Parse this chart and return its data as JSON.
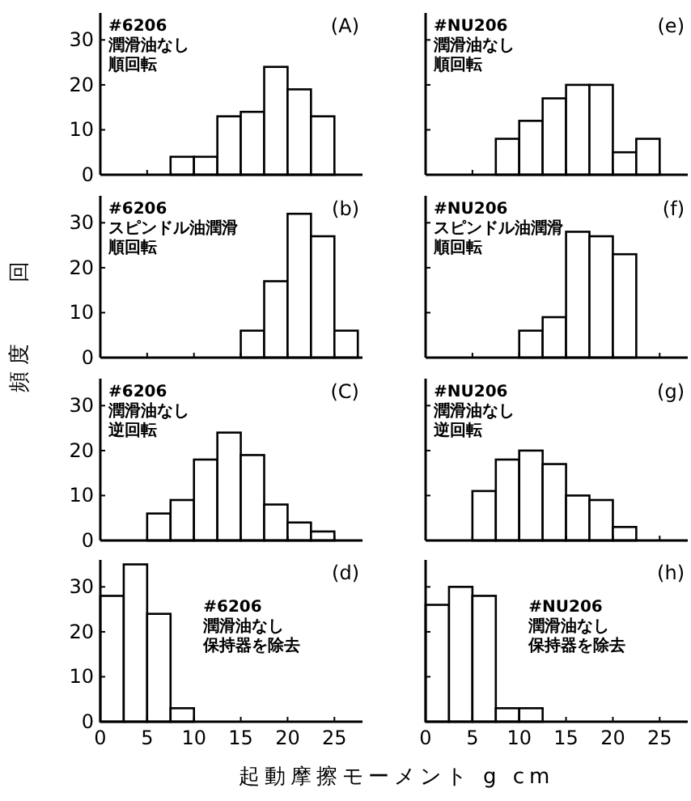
{
  "chart_data": [
    {
      "type": "histogram",
      "title": "(A)",
      "annotations": [
        "#6206",
        "潤滑油なし",
        "順回転"
      ],
      "ylabel": "頻度　　回",
      "bins": [
        7.5,
        10,
        12.5,
        15,
        17.5,
        20,
        22.5,
        25
      ],
      "values": [
        4,
        4,
        13,
        14,
        24,
        19,
        13
      ],
      "color": "#ffffff",
      "xlim": [
        0,
        28
      ],
      "ylim": [
        0,
        36
      ],
      "xticks": [
        0,
        5,
        10,
        15,
        20,
        25
      ],
      "yticks": [
        0,
        10,
        20,
        30
      ],
      "tick_labels": "y"
    },
    {
      "type": "histogram",
      "title": "(e)",
      "annotations": [
        "#NU206",
        "潤滑油なし",
        "順回転"
      ],
      "bins": [
        7.5,
        10,
        12.5,
        15,
        17.5,
        20,
        22.5,
        25
      ],
      "values": [
        8,
        12,
        17,
        20,
        20,
        5,
        8
      ],
      "color": "#ffffff",
      "xlim": [
        0,
        28
      ],
      "ylim": [
        0,
        36
      ],
      "xticks": [
        0,
        5,
        10,
        15,
        20,
        25
      ],
      "yticks": [
        0,
        10,
        20,
        30
      ],
      "tick_labels": false
    },
    {
      "type": "histogram",
      "title": "(b)",
      "annotations": [
        "#6206",
        "スピンドル油潤滑",
        "順回転"
      ],
      "bins": [
        15,
        17.5,
        20,
        22.5,
        25,
        27.5
      ],
      "values": [
        6,
        17,
        32,
        27,
        6
      ],
      "color": "#ffffff",
      "xlim": [
        0,
        28
      ],
      "ylim": [
        0,
        36
      ],
      "xticks": [
        0,
        5,
        10,
        15,
        20,
        25
      ],
      "yticks": [
        0,
        10,
        20,
        30
      ],
      "tick_labels": "y"
    },
    {
      "type": "histogram",
      "title": "(f)",
      "annotations": [
        "#NU206",
        "スピンドル油潤滑",
        "順回転"
      ],
      "bins": [
        10,
        12.5,
        15,
        17.5,
        20,
        22.5
      ],
      "values": [
        6,
        9,
        28,
        27,
        23
      ],
      "color": "#ffffff",
      "xlim": [
        0,
        28
      ],
      "ylim": [
        0,
        36
      ],
      "xticks": [
        0,
        5,
        10,
        15,
        20,
        25
      ],
      "yticks": [
        0,
        10,
        20,
        30
      ],
      "tick_labels": false
    },
    {
      "type": "histogram",
      "title": "(C)",
      "annotations": [
        "#6206",
        "潤滑油なし",
        "逆回転"
      ],
      "bins": [
        5,
        7.5,
        10,
        12.5,
        15,
        17.5,
        20,
        22.5,
        25
      ],
      "values": [
        6,
        9,
        18,
        24,
        19,
        8,
        4,
        2
      ],
      "color": "#ffffff",
      "xlim": [
        0,
        28
      ],
      "ylim": [
        0,
        36
      ],
      "xticks": [
        0,
        5,
        10,
        15,
        20,
        25
      ],
      "yticks": [
        0,
        10,
        20,
        30
      ],
      "tick_labels": "y"
    },
    {
      "type": "histogram",
      "title": "(g)",
      "annotations": [
        "#NU206",
        "潤滑油なし",
        "逆回転"
      ],
      "bins": [
        5,
        7.5,
        10,
        12.5,
        15,
        17.5,
        20,
        22.5
      ],
      "values": [
        11,
        18,
        20,
        17,
        10,
        9,
        3
      ],
      "color": "#ffffff",
      "xlim": [
        0,
        28
      ],
      "ylim": [
        0,
        36
      ],
      "xticks": [
        0,
        5,
        10,
        15,
        20,
        25
      ],
      "yticks": [
        0,
        10,
        20,
        30
      ],
      "tick_labels": false
    },
    {
      "type": "histogram",
      "title": "(d)",
      "annotations": [
        "#6206",
        "潤滑油なし",
        "保持器を除去"
      ],
      "xlabel": "起動摩擦モーメント g cm",
      "bins": [
        0,
        2.5,
        5,
        7.5,
        10
      ],
      "values": [
        28,
        35,
        24,
        3
      ],
      "color": "#ffffff",
      "xlim": [
        0,
        28
      ],
      "ylim": [
        0,
        36
      ],
      "xticks": [
        0,
        5,
        10,
        15,
        20,
        25
      ],
      "yticks": [
        0,
        10,
        20,
        30
      ]
    },
    {
      "type": "histogram",
      "title": "(h)",
      "annotations": [
        "#NU206",
        "潤滑油なし",
        "保持器を除去"
      ],
      "bins": [
        0,
        2.5,
        5,
        7.5,
        10,
        12.5
      ],
      "values": [
        26,
        30,
        28,
        3,
        3
      ],
      "color": "#ffffff",
      "xlim": [
        0,
        28
      ],
      "ylim": [
        0,
        36
      ],
      "xticks": [
        0,
        5,
        10,
        15,
        20,
        25
      ],
      "yticks": [
        0,
        10,
        20,
        30
      ],
      "tick_labels": "x"
    }
  ]
}
